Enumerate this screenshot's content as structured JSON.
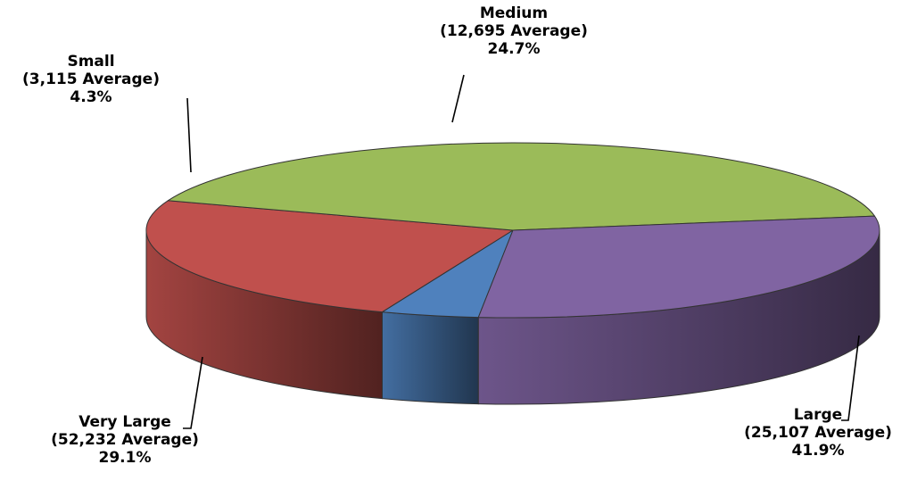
{
  "chart_data": {
    "type": "pie",
    "title": "",
    "categories": [
      "Small",
      "Medium",
      "Large",
      "Very Large"
    ],
    "averages": [
      "(3,115 Average)",
      "(12,695 Average)",
      "(25,107 Average)",
      "(52,232 Average)"
    ],
    "percent_labels": [
      "4.3%",
      "24.7%",
      "41.9%",
      "29.1%"
    ],
    "values": [
      4.3,
      24.7,
      41.9,
      29.1
    ],
    "colors": [
      "#4f81bd",
      "#c0504d",
      "#9bbb59",
      "#8064a2"
    ],
    "style": "3d-exploded-tilted",
    "legend": "none"
  }
}
